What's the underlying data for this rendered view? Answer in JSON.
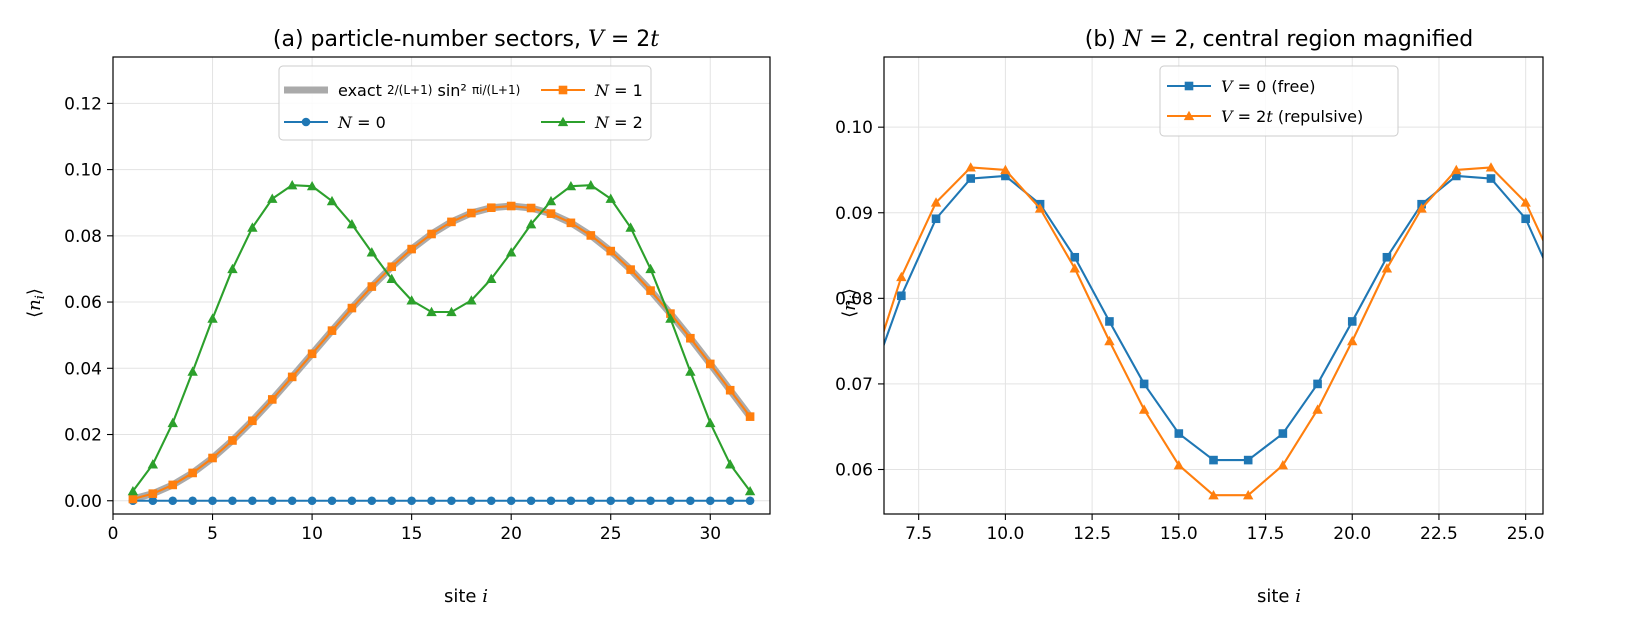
{
  "chart_data": [
    {
      "type": "line",
      "title": "(a)  particle-number sectors, V = 2t",
      "xlabel": "site i",
      "ylabel": "⟨nᵢ⟩",
      "xlim": [
        0,
        33
      ],
      "ylim": [
        -0.004,
        0.134
      ],
      "xticks": [
        0,
        5,
        10,
        15,
        20,
        25,
        30
      ],
      "yticks": [
        0.0,
        0.02,
        0.04,
        0.06,
        0.08,
        0.1,
        0.12
      ],
      "xtick_labels": [
        "0",
        "5",
        "10",
        "15",
        "20",
        "25",
        "30"
      ],
      "ytick_labels": [
        "0.00",
        "0.02",
        "0.04",
        "0.06",
        "0.08",
        "0.10",
        "0.12"
      ],
      "grid": true,
      "legend_position": "top-center",
      "x": [
        1,
        2,
        3,
        4,
        5,
        6,
        7,
        8,
        9,
        10,
        11,
        12,
        13,
        14,
        15,
        16,
        17,
        18,
        19,
        20,
        21,
        22,
        23,
        24,
        25,
        26,
        27,
        28,
        29,
        30,
        31,
        32
      ],
      "series": [
        {
          "name": "exact 2/(L+1) sin² πi/(L+1)",
          "color": "#aaaaaa",
          "marker": "none",
          "values": [
            0.00054,
            0.00214,
            0.00478,
            0.0084,
            0.01291,
            0.0182,
            0.02415,
            0.0306,
            0.0374,
            0.04438,
            0.05137,
            0.05819,
            0.06468,
            0.07066,
            0.076,
            0.08055,
            0.08421,
            0.08688,
            0.08849,
            0.089,
            0.0884,
            0.0867,
            0.08392,
            0.08012,
            0.07539,
            0.0698,
            0.06346,
            0.05651,
            0.04908,
            0.04132,
            0.03338,
            0.0254
          ]
        },
        {
          "name": "N = 0",
          "color": "#1f77b4",
          "marker": "circle",
          "values": [
            0,
            0,
            0,
            0,
            0,
            0,
            0,
            0,
            0,
            0,
            0,
            0,
            0,
            0,
            0,
            0,
            0,
            0,
            0,
            0,
            0,
            0,
            0,
            0,
            0,
            0,
            0,
            0,
            0,
            0,
            0,
            0
          ]
        },
        {
          "name": "N = 1",
          "color": "#ff7f0e",
          "marker": "square",
          "values": [
            0.00054,
            0.00214,
            0.00478,
            0.0084,
            0.01291,
            0.0182,
            0.02415,
            0.0306,
            0.0374,
            0.04438,
            0.05137,
            0.05819,
            0.06468,
            0.07066,
            0.076,
            0.08055,
            0.08421,
            0.08688,
            0.08849,
            0.089,
            0.0884,
            0.0867,
            0.08392,
            0.08012,
            0.07539,
            0.0698,
            0.06346,
            0.05651,
            0.04908,
            0.04132,
            0.03338,
            0.0254
          ]
        },
        {
          "name": "N = 2",
          "color": "#2ca02c",
          "marker": "triangle",
          "values": [
            0.0029,
            0.011,
            0.0235,
            0.039,
            0.055,
            0.07,
            0.0825,
            0.0912,
            0.0953,
            0.095,
            0.0905,
            0.0835,
            0.075,
            0.067,
            0.0605,
            0.057,
            0.057,
            0.0605,
            0.067,
            0.075,
            0.0835,
            0.0905,
            0.095,
            0.0953,
            0.0912,
            0.0825,
            0.07,
            0.055,
            0.039,
            0.0235,
            0.011,
            0.0029
          ]
        }
      ]
    },
    {
      "type": "line",
      "title": "(b)  N = 2, central region magnified",
      "xlabel": "site i",
      "ylabel": "⟨nᵢ⟩",
      "xlim": [
        6.5,
        25.5
      ],
      "ylim": [
        0.0548,
        0.1082
      ],
      "xticks": [
        7.5,
        10.0,
        12.5,
        15.0,
        17.5,
        20.0,
        22.5,
        25.0
      ],
      "yticks": [
        0.06,
        0.07,
        0.08,
        0.09,
        0.1
      ],
      "xtick_labels": [
        "7.5",
        "10.0",
        "12.5",
        "15.0",
        "17.5",
        "20.0",
        "22.5",
        "25.0"
      ],
      "ytick_labels": [
        "0.06",
        "0.07",
        "0.08",
        "0.09",
        "0.10"
      ],
      "grid": true,
      "legend_position": "top-center",
      "x": [
        6,
        7,
        8,
        9,
        10,
        11,
        12,
        13,
        14,
        15,
        16,
        17,
        18,
        19,
        20,
        21,
        22,
        23,
        24,
        25,
        26
      ],
      "series": [
        {
          "name": "V = 0  (free)",
          "color": "#1f77b4",
          "marker": "square",
          "values": [
            0.069,
            0.0803,
            0.0893,
            0.094,
            0.0943,
            0.091,
            0.0848,
            0.0773,
            0.07,
            0.0642,
            0.0611,
            0.0611,
            0.0642,
            0.07,
            0.0773,
            0.0848,
            0.091,
            0.0943,
            0.094,
            0.0893,
            0.0803
          ]
        },
        {
          "name": "V = 2t  (repulsive)",
          "color": "#ff7f0e",
          "marker": "triangle",
          "values": [
            0.07,
            0.0825,
            0.0912,
            0.0953,
            0.095,
            0.0905,
            0.0835,
            0.075,
            0.067,
            0.0605,
            0.057,
            0.057,
            0.0605,
            0.067,
            0.075,
            0.0835,
            0.0905,
            0.095,
            0.0953,
            0.0912,
            0.0825
          ]
        }
      ]
    }
  ]
}
